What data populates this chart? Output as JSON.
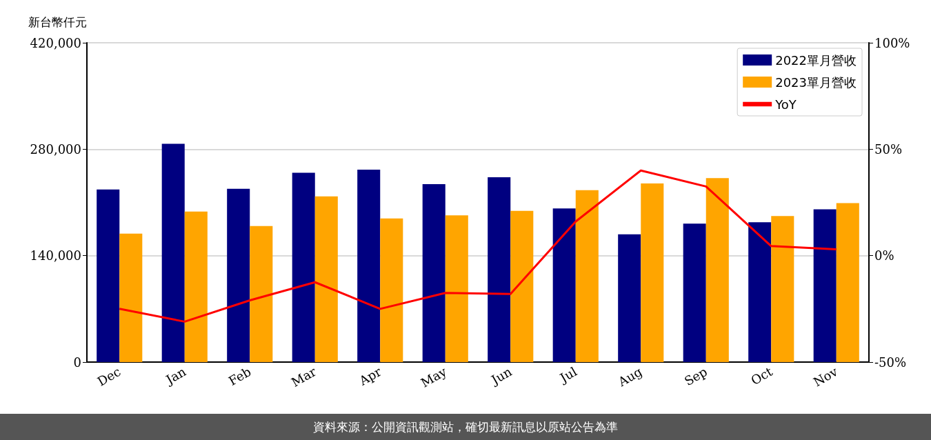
{
  "chart_data": {
    "type": "bar",
    "ylabel": "新台幣仟元",
    "categories": [
      "Dec",
      "Jan",
      "Feb",
      "Mar",
      "Apr",
      "May",
      "Jun",
      "Jul",
      "Aug",
      "Sep",
      "Oct",
      "Nov"
    ],
    "series": [
      {
        "name": "2022單月營收",
        "color": "#000080",
        "values": [
          227000,
          287000,
          228000,
          249000,
          253000,
          234000,
          243000,
          202000,
          168000,
          182000,
          184000,
          201000
        ]
      },
      {
        "name": "2023單月營收",
        "color": "#ffa500",
        "values": [
          169000,
          198000,
          179000,
          218000,
          189000,
          193000,
          199000,
          226000,
          235000,
          242000,
          192000,
          209000
        ]
      },
      {
        "name": "YoY",
        "type": "line",
        "axis": "y2",
        "color": "#ff0000",
        "values": [
          -25,
          -31,
          -21,
          -12.5,
          -25,
          -17.5,
          -18,
          16,
          40,
          32.5,
          4.5,
          3
        ]
      }
    ],
    "ylim": [
      0,
      420000
    ],
    "yticks": [
      0,
      {
        "value": 140000,
        "label": "140,000"
      },
      {
        "value": 280000,
        "label": "280,000"
      },
      {
        "value": 420000,
        "label": "420,000"
      }
    ],
    "y2lim": [
      -50,
      100
    ],
    "y2ticks": [
      {
        "value": -50,
        "label": "-50%"
      },
      {
        "value": 0,
        "label": "0%"
      },
      {
        "value": 50,
        "label": "50%"
      },
      {
        "value": 100,
        "label": "100%"
      }
    ],
    "grid": "y",
    "legend": "top right",
    "marker": "none",
    "line_style": "solid",
    "annotations": [
      "資料來源：公開資訊觀測站，確切最新訊息以原站公告為準"
    ]
  }
}
